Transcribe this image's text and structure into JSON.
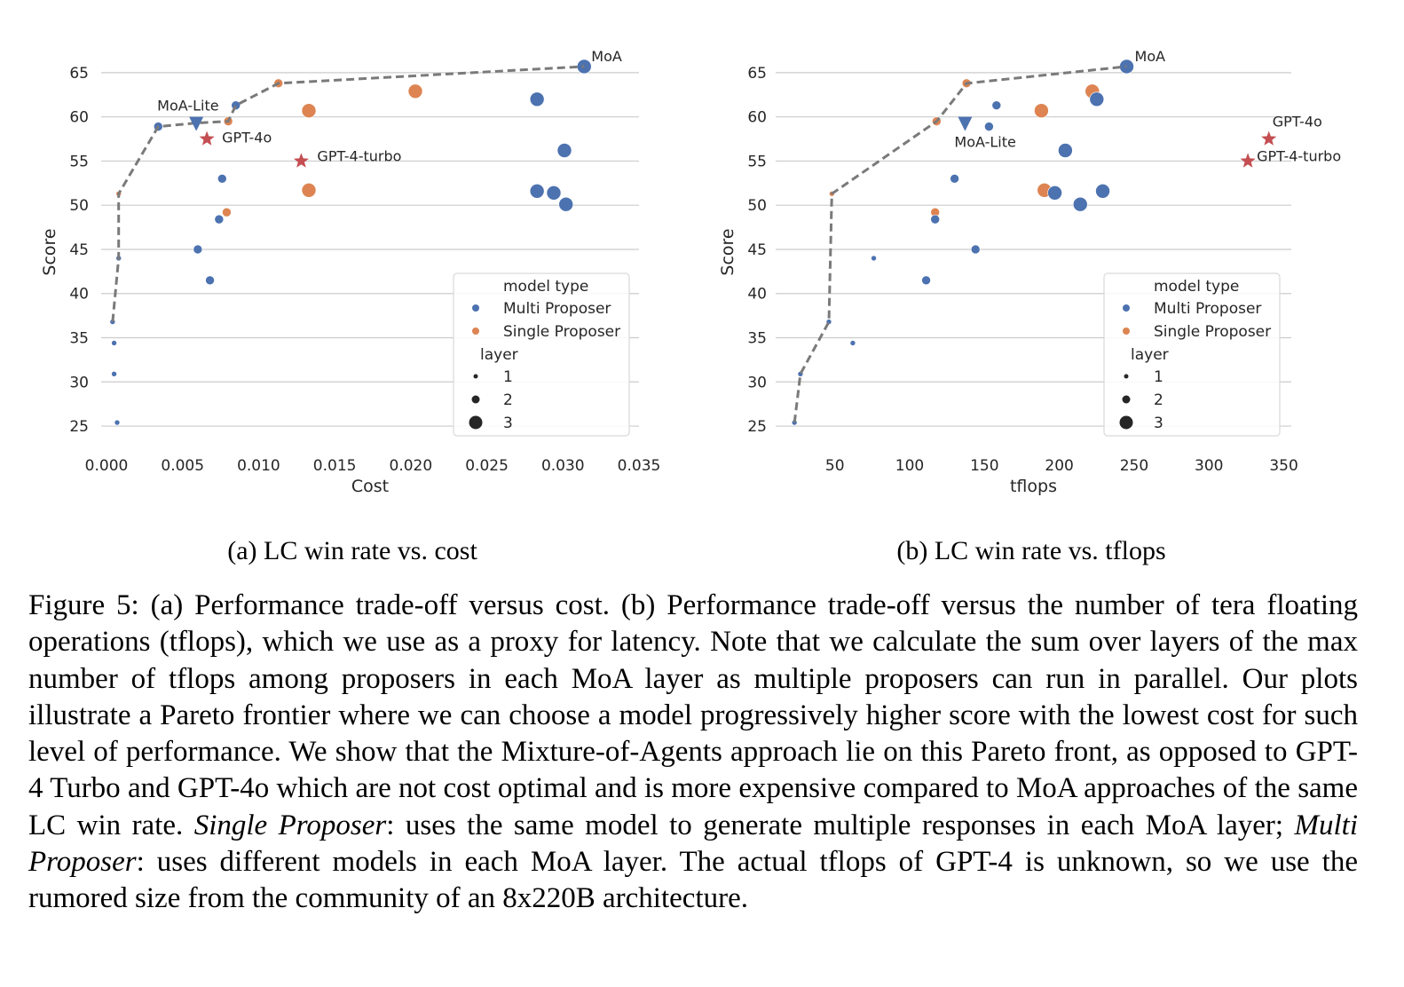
{
  "colors": {
    "multi": "#4c72b0",
    "single": "#dd8452",
    "star": "#c44e52",
    "frontier": "#7a7a7a",
    "grid": "#cccccc"
  },
  "legend": {
    "title_type": "model type",
    "multi_label": "Multi Proposer",
    "single_label": "Single Proposer",
    "title_layer": "layer",
    "layer_labels": [
      "1",
      "2",
      "3"
    ]
  },
  "chart_data": [
    {
      "type": "scatter",
      "subcaption": "(a) LC win rate vs. cost",
      "xlabel": "Cost",
      "ylabel": "Score",
      "xlim": [
        0.0,
        0.035
      ],
      "ylim": [
        24,
        67
      ],
      "xticks": [
        "0.000",
        "0.005",
        "0.010",
        "0.015",
        "0.020",
        "0.025",
        "0.030",
        "0.035"
      ],
      "yticks": [
        "25",
        "30",
        "35",
        "40",
        "45",
        "50",
        "55",
        "60",
        "65"
      ],
      "grid": "horizontal",
      "legend_position": "lower-right",
      "points": [
        {
          "x": 0.0004,
          "y": 36.8,
          "type": "multi",
          "layer": 1
        },
        {
          "x": 0.0005,
          "y": 34.4,
          "type": "multi",
          "layer": 1
        },
        {
          "x": 0.0005,
          "y": 30.9,
          "type": "multi",
          "layer": 1
        },
        {
          "x": 0.0007,
          "y": 25.4,
          "type": "multi",
          "layer": 1
        },
        {
          "x": 0.0008,
          "y": 44.0,
          "type": "multi",
          "layer": 1
        },
        {
          "x": 0.0008,
          "y": 51.3,
          "type": "single",
          "layer": 1
        },
        {
          "x": 0.0034,
          "y": 58.9,
          "type": "multi",
          "layer": 2
        },
        {
          "x": 0.006,
          "y": 45.0,
          "type": "multi",
          "layer": 2
        },
        {
          "x": 0.0068,
          "y": 41.5,
          "type": "multi",
          "layer": 2
        },
        {
          "x": 0.0074,
          "y": 48.4,
          "type": "multi",
          "layer": 2
        },
        {
          "x": 0.0076,
          "y": 53.0,
          "type": "multi",
          "layer": 2
        },
        {
          "x": 0.0079,
          "y": 49.2,
          "type": "single",
          "layer": 2
        },
        {
          "x": 0.008,
          "y": 59.5,
          "type": "single",
          "layer": 2
        },
        {
          "x": 0.0085,
          "y": 61.3,
          "type": "multi",
          "layer": 2
        },
        {
          "x": 0.0113,
          "y": 63.8,
          "type": "single",
          "layer": 2
        },
        {
          "x": 0.0133,
          "y": 60.7,
          "type": "single",
          "layer": 3
        },
        {
          "x": 0.0133,
          "y": 51.7,
          "type": "single",
          "layer": 3
        },
        {
          "x": 0.0203,
          "y": 62.9,
          "type": "single",
          "layer": 3
        },
        {
          "x": 0.0283,
          "y": 62.0,
          "type": "multi",
          "layer": 3
        },
        {
          "x": 0.0283,
          "y": 51.6,
          "type": "multi",
          "layer": 3
        },
        {
          "x": 0.0294,
          "y": 51.4,
          "type": "multi",
          "layer": 3
        },
        {
          "x": 0.0301,
          "y": 56.2,
          "type": "multi",
          "layer": 3
        },
        {
          "x": 0.0302,
          "y": 50.1,
          "type": "multi",
          "layer": 3
        },
        {
          "x": 0.0314,
          "y": 65.7,
          "type": "multi",
          "layer": 3
        }
      ],
      "special": [
        {
          "name": "MoA-Lite",
          "x": 0.0059,
          "y": 59.3,
          "marker": "triangle-down"
        },
        {
          "name": "GPT-4o",
          "x": 0.0066,
          "y": 57.5,
          "marker": "star"
        },
        {
          "name": "GPT-4-turbo",
          "x": 0.0128,
          "y": 55.0,
          "marker": "star"
        },
        {
          "name": "MoA",
          "x": 0.0314,
          "y": 65.7,
          "marker": "none"
        }
      ],
      "frontier": [
        [
          0.0004,
          36.8
        ],
        [
          0.0008,
          44.0
        ],
        [
          0.0008,
          51.3
        ],
        [
          0.0034,
          58.9
        ],
        [
          0.0059,
          59.3
        ],
        [
          0.008,
          59.5
        ],
        [
          0.0085,
          61.3
        ],
        [
          0.0113,
          63.8
        ],
        [
          0.0314,
          65.7
        ]
      ]
    },
    {
      "type": "scatter",
      "subcaption": "(b) LC win rate vs. tflops",
      "xlabel": "tflops",
      "ylabel": "Score",
      "xlim": [
        14,
        355
      ],
      "ylim": [
        24,
        67
      ],
      "xticks": [
        "50",
        "100",
        "150",
        "200",
        "250",
        "300",
        "350"
      ],
      "yticks": [
        "25",
        "30",
        "35",
        "40",
        "45",
        "50",
        "55",
        "60",
        "65"
      ],
      "grid": "horizontal",
      "legend_position": "lower-right",
      "points": [
        {
          "x": 23,
          "y": 25.4,
          "type": "multi",
          "layer": 1
        },
        {
          "x": 27,
          "y": 30.9,
          "type": "multi",
          "layer": 1
        },
        {
          "x": 46,
          "y": 36.8,
          "type": "multi",
          "layer": 1
        },
        {
          "x": 48,
          "y": 51.3,
          "type": "single",
          "layer": 1
        },
        {
          "x": 62,
          "y": 34.4,
          "type": "multi",
          "layer": 1
        },
        {
          "x": 76,
          "y": 44.0,
          "type": "multi",
          "layer": 1
        },
        {
          "x": 111,
          "y": 41.5,
          "type": "multi",
          "layer": 2
        },
        {
          "x": 117,
          "y": 49.2,
          "type": "single",
          "layer": 2
        },
        {
          "x": 117,
          "y": 48.4,
          "type": "multi",
          "layer": 2
        },
        {
          "x": 118,
          "y": 59.5,
          "type": "single",
          "layer": 2
        },
        {
          "x": 130,
          "y": 53.0,
          "type": "multi",
          "layer": 2
        },
        {
          "x": 138,
          "y": 63.8,
          "type": "single",
          "layer": 2
        },
        {
          "x": 144,
          "y": 45.0,
          "type": "multi",
          "layer": 2
        },
        {
          "x": 153,
          "y": 58.9,
          "type": "multi",
          "layer": 2
        },
        {
          "x": 158,
          "y": 61.3,
          "type": "multi",
          "layer": 2
        },
        {
          "x": 188,
          "y": 60.7,
          "type": "single",
          "layer": 3
        },
        {
          "x": 190,
          "y": 51.7,
          "type": "single",
          "layer": 3
        },
        {
          "x": 197,
          "y": 51.4,
          "type": "multi",
          "layer": 3
        },
        {
          "x": 204,
          "y": 56.2,
          "type": "multi",
          "layer": 3
        },
        {
          "x": 214,
          "y": 50.1,
          "type": "multi",
          "layer": 3
        },
        {
          "x": 222,
          "y": 62.9,
          "type": "single",
          "layer": 3
        },
        {
          "x": 225,
          "y": 62.0,
          "type": "multi",
          "layer": 3
        },
        {
          "x": 229,
          "y": 51.6,
          "type": "multi",
          "layer": 3
        },
        {
          "x": 245,
          "y": 65.7,
          "type": "multi",
          "layer": 3
        }
      ],
      "special": [
        {
          "name": "MoA-Lite",
          "x": 137,
          "y": 59.3,
          "marker": "triangle-down"
        },
        {
          "name": "GPT-4o",
          "x": 340,
          "y": 57.5,
          "marker": "star"
        },
        {
          "name": "GPT-4-turbo",
          "x": 326,
          "y": 55.0,
          "marker": "star"
        },
        {
          "name": "MoA",
          "x": 245,
          "y": 65.7,
          "marker": "none"
        }
      ],
      "frontier": [
        [
          23,
          25.4
        ],
        [
          27,
          30.9
        ],
        [
          46,
          36.8
        ],
        [
          48,
          51.3
        ],
        [
          118,
          59.5
        ],
        [
          138,
          63.8
        ],
        [
          245,
          65.7
        ]
      ]
    }
  ],
  "caption": {
    "lead": "Figure 5: (a) Performance trade-off versus cost. (b) Performance trade-off versus the number of tera floating operations (tflops), which we use as a proxy for latency. Note that we calculate the sum over layers of the max number of tflops among proposers in each MoA layer as multiple proposers can run in parallel. Our plots illustrate a Pareto frontier where we can choose a model progressively higher score with the lowest cost for such level of performance. We show that the Mixture-of-Agents approach lie on this Pareto front, as opposed to GPT-4 Turbo and GPT-4o which are not cost optimal and is more expensive compared to MoA approaches of the same LC win rate. ",
    "term1": "Single Proposer",
    "def1": ": uses the same model to generate multiple responses in each MoA layer; ",
    "term2": "Multi Proposer",
    "def2": ": uses different models in each MoA layer. The actual tflops of GPT-4 is unknown, so we use the rumored size from the community of an 8x220B architecture."
  }
}
